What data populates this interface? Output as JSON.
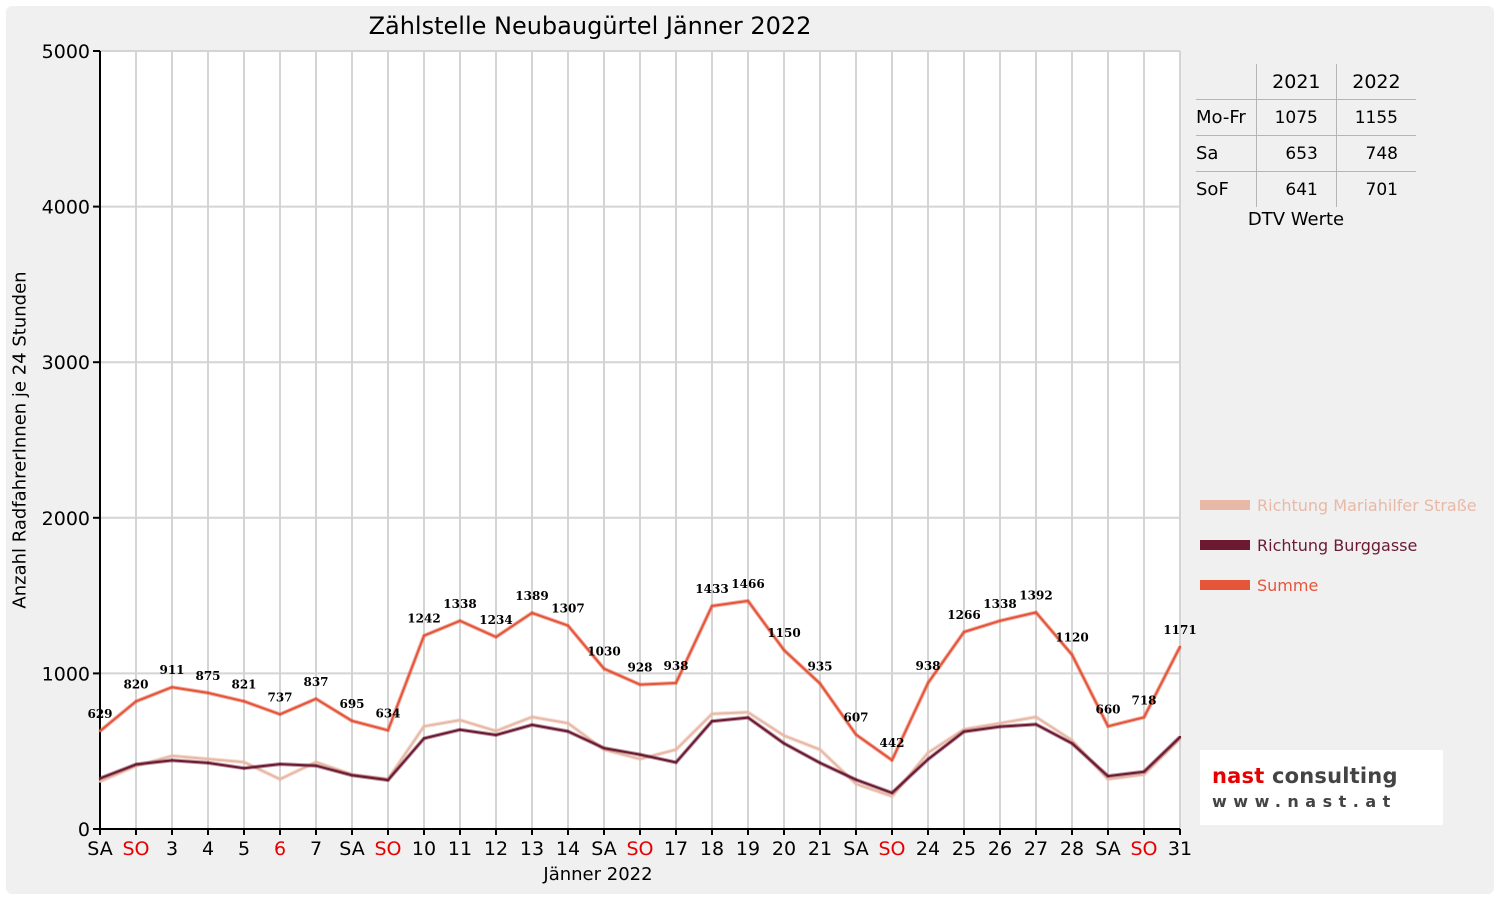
{
  "colors": {
    "mariahilfer": "#e8b9a6",
    "burggasse": "#6b1a32",
    "summe": "#e4553a",
    "red_label": "#e60000"
  },
  "chart_data": {
    "type": "line",
    "title": "Zählstelle Neubaugürtel Jänner 2022",
    "xlabel": "Jänner 2022",
    "ylabel": "Anzahl RadfahrerInnen je 24 Stunden",
    "ylim": [
      0,
      5000
    ],
    "yticks": [
      0,
      1000,
      2000,
      3000,
      4000,
      5000
    ],
    "grid": true,
    "legend_position": "right",
    "categories": [
      "SA",
      "SO",
      "3",
      "4",
      "5",
      "6",
      "7",
      "SA",
      "SO",
      "10",
      "11",
      "12",
      "13",
      "14",
      "SA",
      "SO",
      "17",
      "18",
      "19",
      "20",
      "21",
      "SA",
      "SO",
      "24",
      "25",
      "26",
      "27",
      "28",
      "SA",
      "SO",
      "31"
    ],
    "red_categories": [
      1,
      5,
      8,
      15,
      22,
      29
    ],
    "series": [
      {
        "name": "Richtung Mariahilfer Straße",
        "color": "#e8b9a6",
        "values": [
          305,
          405,
          470,
          450,
          430,
          320,
          430,
          350,
          320,
          660,
          700,
          630,
          720,
          680,
          510,
          450,
          510,
          740,
          750,
          600,
          510,
          290,
          210,
          490,
          640,
          680,
          720,
          570,
          320,
          350,
          580
        ]
      },
      {
        "name": "Richtung Burggasse",
        "color": "#6b1a32",
        "values": [
          325,
          415,
          441,
          425,
          391,
          417,
          407,
          345,
          314,
          582,
          638,
          604,
          669,
          627,
          520,
          478,
          428,
          693,
          716,
          550,
          425,
          317,
          232,
          448,
          626,
          658,
          672,
          550,
          340,
          368,
          591
        ]
      },
      {
        "name": "Summe",
        "color": "#e4553a",
        "values": [
          629,
          820,
          911,
          875,
          821,
          737,
          837,
          695,
          634,
          1242,
          1338,
          1234,
          1389,
          1307,
          1030,
          928,
          938,
          1433,
          1466,
          1150,
          935,
          607,
          442,
          938,
          1266,
          1338,
          1392,
          1120,
          660,
          718,
          1171
        ],
        "data_labels": [
          "629",
          "820",
          "911",
          "875",
          "821",
          "737",
          "837",
          "695",
          "634",
          "1242",
          "1338",
          "1234",
          "1389",
          "1307",
          "1030",
          "928",
          "938",
          "1433",
          "1466",
          "1150",
          "935",
          "607",
          "442",
          "938",
          "1266",
          "1338",
          "1392",
          "1120",
          "660",
          "718",
          "1171"
        ]
      }
    ]
  },
  "dtv_table": {
    "headers": [
      "",
      "2021",
      "2022"
    ],
    "rows": [
      {
        "label": "Mo-Fr",
        "v2021": "1075",
        "v2022": "1155"
      },
      {
        "label": "Sa",
        "v2021": "653",
        "v2022": "748"
      },
      {
        "label": "SoF",
        "v2021": "641",
        "v2022": "701"
      }
    ],
    "caption": "DTV Werte"
  },
  "legend": [
    {
      "label": "Richtung Mariahilfer Straße",
      "color": "#e8b9a6"
    },
    {
      "label": "Richtung Burggasse",
      "color": "#6b1a32"
    },
    {
      "label": "Summe",
      "color": "#e4553a"
    }
  ],
  "logo": {
    "line1": "nast consulting",
    "line2": "www.nast.at"
  }
}
